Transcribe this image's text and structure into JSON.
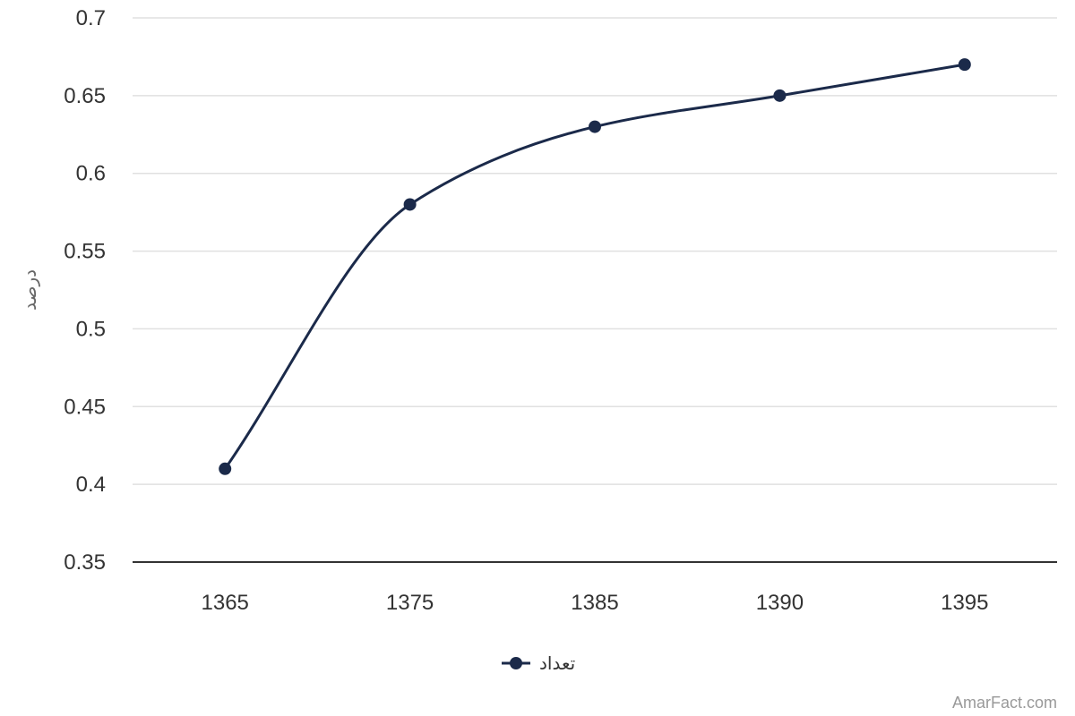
{
  "chart_data": {
    "type": "line",
    "smooth": true,
    "categories": [
      "1365",
      "1375",
      "1385",
      "1390",
      "1395"
    ],
    "series": [
      {
        "name": "تعداد",
        "values": [
          0.41,
          0.58,
          0.63,
          0.65,
          0.67
        ],
        "color": "#1b2a4a"
      }
    ],
    "ylabel": "درصد",
    "xlabel": "",
    "ylim": [
      0.35,
      0.7
    ],
    "yticks": [
      "0.35",
      "0.4",
      "0.45",
      "0.5",
      "0.55",
      "0.6",
      "0.65",
      "0.7"
    ],
    "grid": true,
    "legend_position": "bottom-center"
  },
  "credit": "AmarFact.com",
  "colors": {
    "gridline": "#e0e0e0",
    "baseline": "#333333",
    "series": "#1b2a4a"
  }
}
